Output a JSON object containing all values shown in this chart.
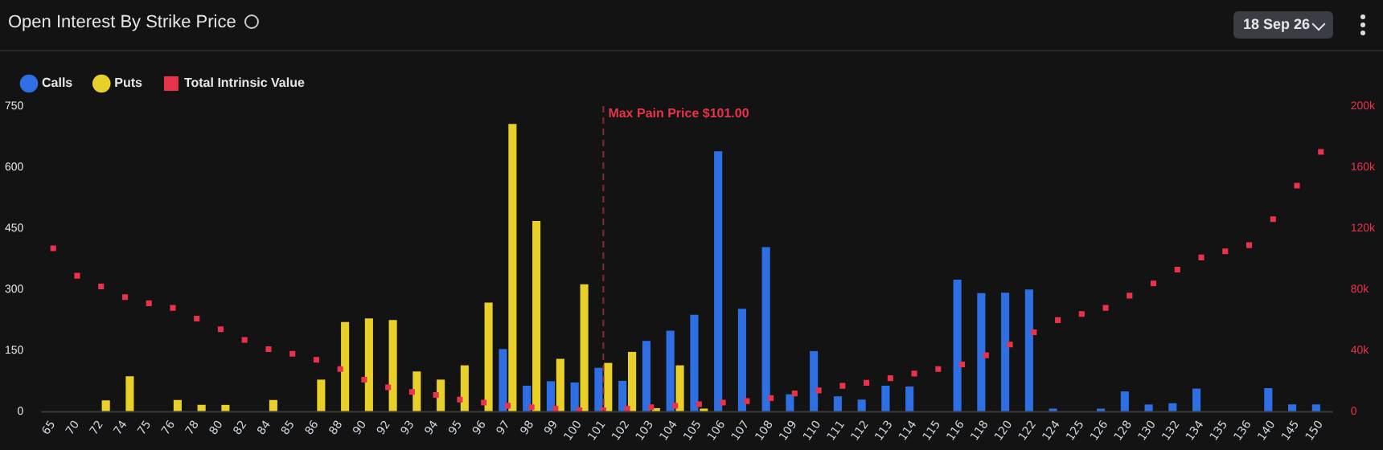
{
  "chart_data": {
    "type": "bar",
    "title": "Open Interest By Strike Price",
    "annotations": [
      "18 Sep 26"
    ],
    "categories": [
      "65",
      "70",
      "72",
      "74",
      "75",
      "76",
      "78",
      "80",
      "82",
      "84",
      "85",
      "86",
      "88",
      "90",
      "92",
      "93",
      "94",
      "95",
      "96",
      "97",
      "98",
      "99",
      "100",
      "101",
      "102",
      "103",
      "104",
      "105",
      "106",
      "107",
      "108",
      "109",
      "110",
      "111",
      "112",
      "113",
      "114",
      "115",
      "116",
      "118",
      "120",
      "122",
      "124",
      "125",
      "126",
      "128",
      "130",
      "132",
      "134",
      "135",
      "136",
      "140",
      "145",
      "150"
    ],
    "series": [
      {
        "name": "Calls",
        "color": "#2f6fe4",
        "values": [
          null,
          null,
          null,
          null,
          null,
          null,
          null,
          null,
          null,
          null,
          null,
          null,
          null,
          null,
          null,
          null,
          null,
          null,
          null,
          154,
          64,
          75,
          72,
          108,
          76,
          174,
          199,
          238,
          639,
          253,
          404,
          43,
          149,
          38,
          30,
          64,
          62,
          null,
          324,
          291,
          292,
          300,
          2,
          null,
          3,
          50,
          18,
          21,
          57,
          null,
          null,
          58,
          18,
          18
        ]
      },
      {
        "name": "Puts",
        "color": "#e8cf2a",
        "values": [
          null,
          null,
          28,
          87,
          null,
          29,
          17,
          17,
          null,
          29,
          null,
          79,
          220,
          229,
          225,
          99,
          79,
          114,
          268,
          706,
          468,
          130,
          313,
          120,
          147,
          9,
          114,
          5,
          null,
          null,
          null,
          null,
          null,
          null,
          null,
          null,
          null,
          null,
          null,
          null,
          null,
          null,
          null,
          null,
          null,
          null,
          null,
          null,
          null,
          null,
          null,
          null,
          null,
          null
        ]
      },
      {
        "name": "Total Intrinsic Value",
        "type": "scatter",
        "axis": "y2",
        "marker": "square",
        "color": "#e8334a",
        "values": [
          107000,
          89000,
          82000,
          75000,
          71000,
          68000,
          61000,
          54000,
          47000,
          41000,
          38000,
          34000,
          28000,
          21000,
          16000,
          13000,
          11000,
          8000,
          6000,
          4000,
          3000,
          2000,
          1000,
          1000,
          2000,
          3000,
          4000,
          5000,
          6000,
          7000,
          9000,
          12000,
          14000,
          17000,
          19000,
          22000,
          25000,
          28000,
          31000,
          37000,
          44000,
          52000,
          60000,
          64000,
          68000,
          76000,
          84000,
          93000,
          101000,
          105000,
          109000,
          126000,
          148000,
          170000
        ]
      }
    ],
    "ylim": [
      0,
      750
    ],
    "yticks": [
      0,
      150,
      300,
      450,
      600,
      750
    ],
    "y2lim": [
      0,
      200000
    ],
    "y2ticks": [
      {
        "value": 0,
        "label": "0"
      },
      {
        "value": 40000,
        "label": "40k"
      },
      {
        "value": 80000,
        "label": "80k"
      },
      {
        "value": 120000,
        "label": "120k"
      },
      {
        "value": 160000,
        "label": "160k"
      },
      {
        "value": 200000,
        "label": "200k"
      }
    ],
    "ref_lines": [
      {
        "axis": "x",
        "value": "101",
        "label": "Max Pain Price $101.00",
        "color": "#8a2a35",
        "line_style": "dashed"
      }
    ],
    "legend": "top left",
    "grid": false
  }
}
